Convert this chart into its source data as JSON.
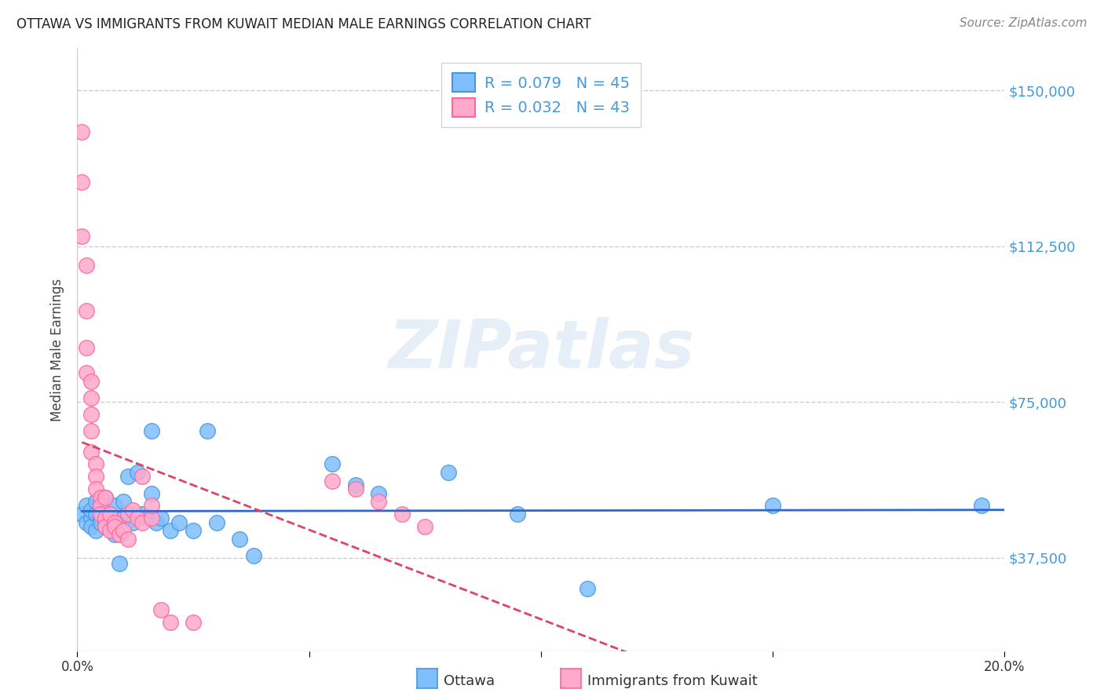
{
  "title": "OTTAWA VS IMMIGRANTS FROM KUWAIT MEDIAN MALE EARNINGS CORRELATION CHART",
  "source": "Source: ZipAtlas.com",
  "ylabel": "Median Male Earnings",
  "watermark": "ZIPatlas",
  "yticks": [
    37500,
    75000,
    112500,
    150000
  ],
  "ytick_labels": [
    "$37,500",
    "$75,000",
    "$112,500",
    "$150,000"
  ],
  "xlim": [
    0.0,
    0.2
  ],
  "ylim": [
    15000,
    160000
  ],
  "legend1_r": "R = 0.079",
  "legend1_n": "N = 45",
  "legend2_r": "R = 0.032",
  "legend2_n": "N = 43",
  "color_ottawa": "#7fbfff",
  "color_kuwait": "#ffaacc",
  "color_blue": "#4499dd",
  "color_pink": "#ff6699",
  "color_trendline_blue": "#3366cc",
  "color_trendline_pink": "#dd4466",
  "color_ytick": "#4499dd",
  "ottawa_x": [
    0.001,
    0.002,
    0.002,
    0.003,
    0.003,
    0.003,
    0.004,
    0.004,
    0.004,
    0.005,
    0.005,
    0.005,
    0.006,
    0.006,
    0.007,
    0.007,
    0.008,
    0.008,
    0.009,
    0.01,
    0.01,
    0.011,
    0.012,
    0.013,
    0.014,
    0.015,
    0.016,
    0.016,
    0.017,
    0.018,
    0.02,
    0.022,
    0.025,
    0.028,
    0.03,
    0.035,
    0.038,
    0.055,
    0.06,
    0.065,
    0.08,
    0.095,
    0.11,
    0.15,
    0.195
  ],
  "ottawa_y": [
    48000,
    46000,
    50000,
    47000,
    49000,
    45000,
    48000,
    51000,
    44000,
    50000,
    47000,
    46000,
    52000,
    45000,
    48000,
    47000,
    43000,
    50000,
    36000,
    47000,
    51000,
    57000,
    46000,
    58000,
    48000,
    47000,
    68000,
    53000,
    46000,
    47000,
    44000,
    46000,
    44000,
    68000,
    46000,
    42000,
    38000,
    60000,
    55000,
    53000,
    58000,
    48000,
    30000,
    50000,
    50000
  ],
  "kuwait_x": [
    0.001,
    0.001,
    0.001,
    0.002,
    0.002,
    0.002,
    0.002,
    0.003,
    0.003,
    0.003,
    0.003,
    0.003,
    0.004,
    0.004,
    0.004,
    0.005,
    0.005,
    0.005,
    0.006,
    0.006,
    0.006,
    0.007,
    0.007,
    0.008,
    0.008,
    0.009,
    0.01,
    0.011,
    0.011,
    0.012,
    0.013,
    0.014,
    0.014,
    0.016,
    0.016,
    0.018,
    0.02,
    0.025,
    0.055,
    0.06,
    0.065,
    0.07,
    0.075
  ],
  "kuwait_y": [
    140000,
    128000,
    115000,
    108000,
    97000,
    88000,
    82000,
    80000,
    76000,
    72000,
    68000,
    63000,
    60000,
    57000,
    54000,
    52000,
    50000,
    48000,
    47000,
    52000,
    45000,
    44000,
    48000,
    46000,
    45000,
    43000,
    44000,
    42000,
    48000,
    49000,
    47000,
    46000,
    57000,
    47000,
    50000,
    25000,
    22000,
    22000,
    56000,
    54000,
    51000,
    48000,
    45000
  ]
}
